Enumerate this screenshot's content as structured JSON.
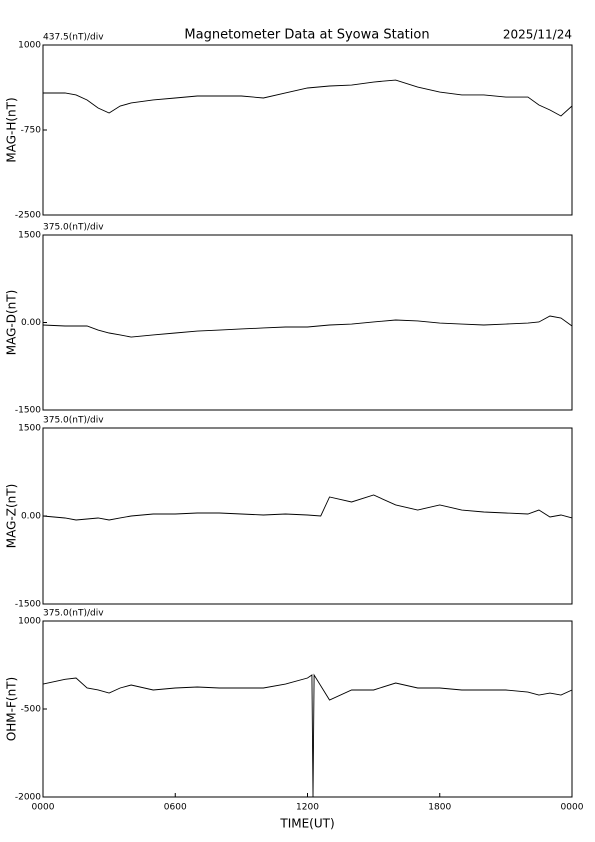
{
  "chart_data": [
    {
      "type": "line",
      "title": "Magnetometer Data at Syowa Station",
      "date": "2025/11/24",
      "scale": "437.5(nT)/div",
      "ylabel": "MAG-H(nT)",
      "color": "#000000",
      "x": [
        0,
        1,
        1.5,
        2,
        2.5,
        3,
        3.5,
        4,
        5,
        6,
        7,
        8,
        9,
        10,
        11,
        12,
        13,
        14,
        15,
        16,
        17,
        18,
        19,
        20,
        21,
        22,
        22.5,
        23,
        23.5,
        24
      ],
      "values": [
        12,
        12,
        -29,
        -132,
        -297,
        -400,
        -256,
        -194,
        -132,
        -91,
        -50,
        -50,
        -50,
        -91,
        12,
        115,
        156,
        176,
        238,
        279,
        135,
        32,
        -29,
        -29,
        -71,
        -71,
        -235,
        -338,
        -462,
        -256
      ],
      "xlim": [
        0,
        24
      ],
      "ylim": [
        -2500,
        1000
      ],
      "yticks": [
        -2500,
        -750,
        1000
      ]
    },
    {
      "type": "line",
      "scale": "375.0(nT)/div",
      "ylabel": "MAG-D(nT)",
      "color": "#000000",
      "x": [
        0,
        1,
        1.5,
        2,
        2.5,
        3,
        3.5,
        4,
        5,
        6,
        7,
        8,
        9,
        10,
        11,
        12,
        13,
        14,
        15,
        16,
        17,
        18,
        19,
        20,
        21,
        22,
        22.5,
        23,
        23.5,
        24
      ],
      "values": [
        -43,
        -60,
        -60,
        -60,
        -129,
        -180,
        -214,
        -249,
        -214,
        -180,
        -146,
        -129,
        -111,
        -94,
        -77,
        -77,
        -43,
        -26,
        9,
        43,
        26,
        -9,
        -26,
        -43,
        -26,
        -9,
        9,
        111,
        77,
        -60
      ],
      "xlim": [
        0,
        24
      ],
      "ylim": [
        -1500,
        1500
      ],
      "yticks": [
        -1500,
        {
          "value": 0,
          "label": "0.00"
        },
        1500
      ]
    },
    {
      "type": "line",
      "scale": "375.0(nT)/div",
      "ylabel": "MAG-Z(nT)",
      "color": "#000000",
      "x": [
        0,
        1,
        1.5,
        2,
        2.5,
        3,
        3.5,
        4,
        5,
        6,
        7,
        8,
        9,
        10,
        11,
        12,
        12.6,
        13,
        14,
        15,
        16,
        17,
        18,
        19,
        20,
        21,
        22,
        22.5,
        23,
        23.5,
        24
      ],
      "values": [
        0,
        -34,
        -68,
        -51,
        -34,
        -68,
        -34,
        0,
        34,
        34,
        51,
        51,
        34,
        17,
        34,
        17,
        0,
        324,
        239,
        358,
        188,
        102,
        188,
        102,
        68,
        51,
        34,
        102,
        -17,
        17,
        -34
      ],
      "xlim": [
        0,
        24
      ],
      "ylim": [
        -1500,
        1500
      ],
      "yticks": [
        -1500,
        {
          "value": 0,
          "label": "0.00"
        },
        1500
      ]
    },
    {
      "type": "line",
      "scale": "375.0(nT)/div",
      "ylabel": "OHM-F(nT)",
      "xlabel": "TIME(UT)",
      "color": "#000000",
      "x": [
        0,
        1,
        1.5,
        2,
        2.5,
        3,
        3.5,
        4,
        5,
        6,
        7,
        8,
        9,
        10,
        11,
        12,
        12.2,
        12.25,
        12.3,
        13,
        14,
        15,
        16,
        17,
        18,
        19,
        20,
        21,
        22,
        22.5,
        23,
        23.5,
        24
      ],
      "values": [
        -74,
        6,
        28,
        -142,
        -176,
        -228,
        -142,
        -91,
        -176,
        -142,
        -125,
        -142,
        -142,
        -142,
        -74,
        28,
        79,
        -2000,
        79,
        -347,
        -176,
        -176,
        -57,
        -142,
        -142,
        -176,
        -176,
        -176,
        -211,
        -262,
        -228,
        -262,
        -176
      ],
      "xlim": [
        0,
        24
      ],
      "ylim": [
        -2000,
        1000
      ],
      "yticks": [
        -2000,
        -500,
        1000
      ],
      "xticks": [
        {
          "value": 0,
          "label": "0000"
        },
        {
          "value": 6,
          "label": "0600"
        },
        {
          "value": 12,
          "label": "1200"
        },
        {
          "value": 18,
          "label": "1800"
        },
        {
          "value": 24,
          "label": "0000"
        }
      ]
    }
  ]
}
